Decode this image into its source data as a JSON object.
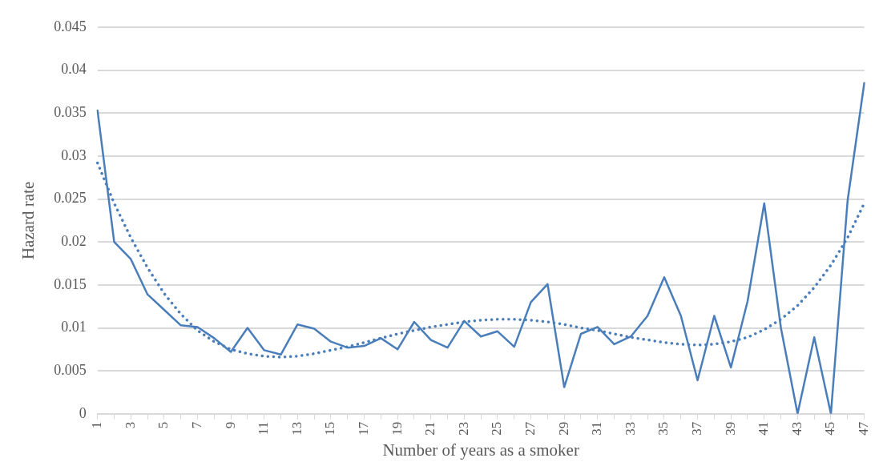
{
  "chart_data": {
    "type": "line",
    "xlabel": "Number of years as a smoker",
    "ylabel": "Hazard rate",
    "categories": [
      "1",
      null,
      "3",
      null,
      "5",
      null,
      "7",
      null,
      "9",
      null,
      "11",
      null,
      "13",
      null,
      "15",
      null,
      "17",
      null,
      "19",
      null,
      "21",
      null,
      "23",
      null,
      "25",
      null,
      "27",
      null,
      "29",
      null,
      "31",
      null,
      "33",
      null,
      "35",
      null,
      "37",
      null,
      "39",
      null,
      "41",
      null,
      "43",
      null,
      "45",
      null,
      "47"
    ],
    "series": [
      {
        "type": "line",
        "color": "#4a7ebb",
        "line_style": "solid",
        "values": [
          0.0353,
          0.02,
          0.018,
          0.0139,
          0.0121,
          0.0103,
          0.0101,
          0.0088,
          0.0072,
          0.01,
          0.0074,
          0.0069,
          0.0104,
          0.0099,
          0.0084,
          0.0077,
          0.0079,
          0.0088,
          0.0075,
          0.0107,
          0.0086,
          0.0077,
          0.0108,
          0.009,
          0.0096,
          0.0078,
          0.013,
          0.0151,
          0.0031,
          0.0093,
          0.0101,
          0.0081,
          0.009,
          0.0114,
          0.0159,
          0.0114,
          0.0039,
          0.0114,
          0.0054,
          0.0131,
          0.0245,
          0.01,
          0,
          0.0089,
          0,
          0.0248,
          0.0385
        ]
      },
      {
        "type": "line",
        "color": "#4a7ebb",
        "line_style": "dotted",
        "values": [
          0.0292,
          0.0245,
          0.0205,
          0.017,
          0.014,
          0.0116,
          0.0097,
          0.0084,
          0.0075,
          0.007,
          0.0067,
          0.0066,
          0.0067,
          0.007,
          0.0074,
          0.0078,
          0.0083,
          0.0088,
          0.0093,
          0.0097,
          0.0101,
          0.0104,
          0.0107,
          0.0109,
          0.011,
          0.011,
          0.0109,
          0.0107,
          0.0104,
          0.01,
          0.0097,
          0.0093,
          0.0089,
          0.0086,
          0.0083,
          0.0081,
          0.008,
          0.0081,
          0.0084,
          0.0089,
          0.0098,
          0.011,
          0.0126,
          0.0147,
          0.0173,
          0.0205,
          0.0245
        ]
      }
    ],
    "ylim": [
      0,
      0.045
    ],
    "yticks": [
      0,
      0.005,
      0.01,
      0.015,
      0.02,
      0.025,
      0.03,
      0.035,
      0.04,
      0.045
    ],
    "grid": "y",
    "legend": false,
    "marker": "none"
  }
}
